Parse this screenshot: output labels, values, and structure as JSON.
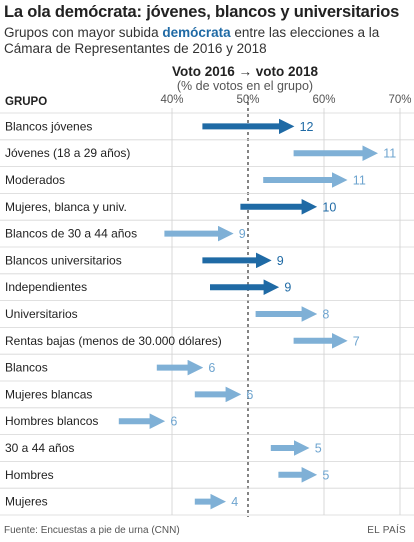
{
  "header": {
    "title": "La ola demócrata: jóvenes, blancos y universitarios",
    "subtitle_before": "Grupos con mayor subida ",
    "subtitle_highlight": "demócrata",
    "subtitle_after": " entre las elecciones a la Cámara de Representantes de 2016 y 2018"
  },
  "footer": {
    "source": "Fuente: Encuestas a pie de urna (CNN)",
    "brand": "EL PAÍS"
  },
  "colors": {
    "strong": "#1f6aa5",
    "light": "#7fb0d6",
    "text_light": "#6ea4cf",
    "grid": "#cfcfcf",
    "row_line": "#d6d6d6",
    "reference_line": "#333333"
  },
  "chart_data": {
    "type": "arrow-range",
    "title": "Voto 2016 → voto 2018",
    "subtitle": "(% de votos en el grupo)",
    "group_header": "GRUPO",
    "x_ticks": [
      40,
      50,
      60,
      70
    ],
    "x_tick_labels": [
      "40%",
      "50%",
      "60%",
      "70%"
    ],
    "reference_line": 50,
    "xlim": [
      40,
      70
    ],
    "rows": [
      {
        "group": "Blancos jóvenes",
        "from": 44,
        "to": 56,
        "change": "12",
        "strong": true
      },
      {
        "group": "Jóvenes (18 a 29 años)",
        "from": 56,
        "to": 67,
        "change": "11",
        "strong": false
      },
      {
        "group": "Moderados",
        "from": 52,
        "to": 63,
        "change": "11",
        "strong": false
      },
      {
        "group": "Mujeres, blanca y univ.",
        "from": 49,
        "to": 59,
        "change": "10",
        "strong": true
      },
      {
        "group": "Blancos de 30 a 44 años",
        "from": 39,
        "to": 48,
        "change": "9",
        "strong": false
      },
      {
        "group": "Blancos universitarios",
        "from": 44,
        "to": 53,
        "change": "9",
        "strong": true
      },
      {
        "group": "Independientes",
        "from": 45,
        "to": 54,
        "change": "9",
        "strong": true
      },
      {
        "group": "Universitarios",
        "from": 51,
        "to": 59,
        "change": "8",
        "strong": false
      },
      {
        "group": "Rentas bajas (menos de 30.000 dólares)",
        "from": 56,
        "to": 63,
        "change": "7",
        "strong": false
      },
      {
        "group": "Blancos",
        "from": 38,
        "to": 44,
        "change": "6",
        "strong": false
      },
      {
        "group": "Mujeres blancas",
        "from": 43,
        "to": 49,
        "change": "6",
        "strong": false
      },
      {
        "group": "Hombres blancos",
        "from": 33,
        "to": 39,
        "change": "6",
        "strong": false
      },
      {
        "group": "30 a 44 años",
        "from": 53,
        "to": 58,
        "change": "5",
        "strong": false
      },
      {
        "group": "Hombres",
        "from": 54,
        "to": 59,
        "change": "5",
        "strong": false
      },
      {
        "group": "Mujeres",
        "from": 43,
        "to": 47,
        "change": "4",
        "strong": false
      }
    ]
  }
}
